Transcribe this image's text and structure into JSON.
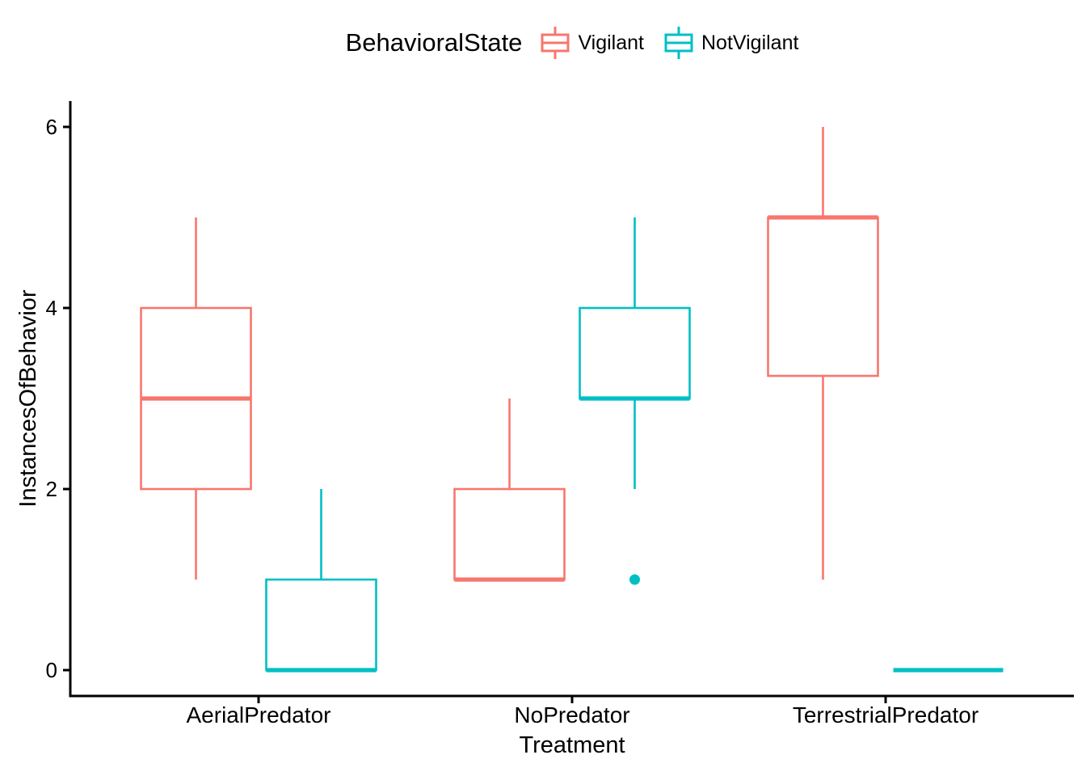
{
  "figure": {
    "background": "#FFFFFF",
    "text_color": "#000000",
    "axis_color": "#000000"
  },
  "legend": {
    "title": "BehavioralState",
    "items": [
      {
        "label": "Vigilant"
      },
      {
        "label": "NotVigilant"
      }
    ]
  },
  "chart_data": {
    "type": "boxplot",
    "title": "",
    "xlabel": "Treatment",
    "ylabel": "InstancesOfBehavior",
    "categories": [
      "AerialPredator",
      "NoPredator",
      "TerrestrialPredator"
    ],
    "ytick_values": [
      0,
      2,
      4,
      6
    ],
    "ytick_labels": [
      "0",
      "2",
      "4",
      "6"
    ],
    "ylim": [
      0,
      6
    ],
    "grid": "off",
    "legend_position": "top",
    "legend_title": "BehavioralState",
    "series": [
      {
        "name": "Vigilant",
        "color": "#F8766D",
        "boxes": [
          {
            "category": "AerialPredator",
            "min": 1,
            "q1": 2,
            "median": 3,
            "q3": 4,
            "max": 5,
            "outliers": []
          },
          {
            "category": "NoPredator",
            "min": 1,
            "q1": 1,
            "median": 1,
            "q3": 2,
            "max": 3,
            "outliers": []
          },
          {
            "category": "TerrestrialPredator",
            "min": 1,
            "q1": 3.25,
            "median": 5,
            "q3": 5,
            "max": 6,
            "outliers": []
          }
        ]
      },
      {
        "name": "NotVigilant",
        "color": "#00BFC4",
        "boxes": [
          {
            "category": "AerialPredator",
            "min": 0,
            "q1": 0,
            "median": 0,
            "q3": 1,
            "max": 2,
            "outliers": []
          },
          {
            "category": "NoPredator",
            "min": 2,
            "q1": 3,
            "median": 3,
            "q3": 4,
            "max": 5,
            "outliers": [
              1
            ]
          },
          {
            "category": "TerrestrialPredator",
            "min": 0,
            "q1": 0,
            "median": 0,
            "q3": 0,
            "max": 0,
            "outliers": []
          }
        ]
      }
    ]
  }
}
